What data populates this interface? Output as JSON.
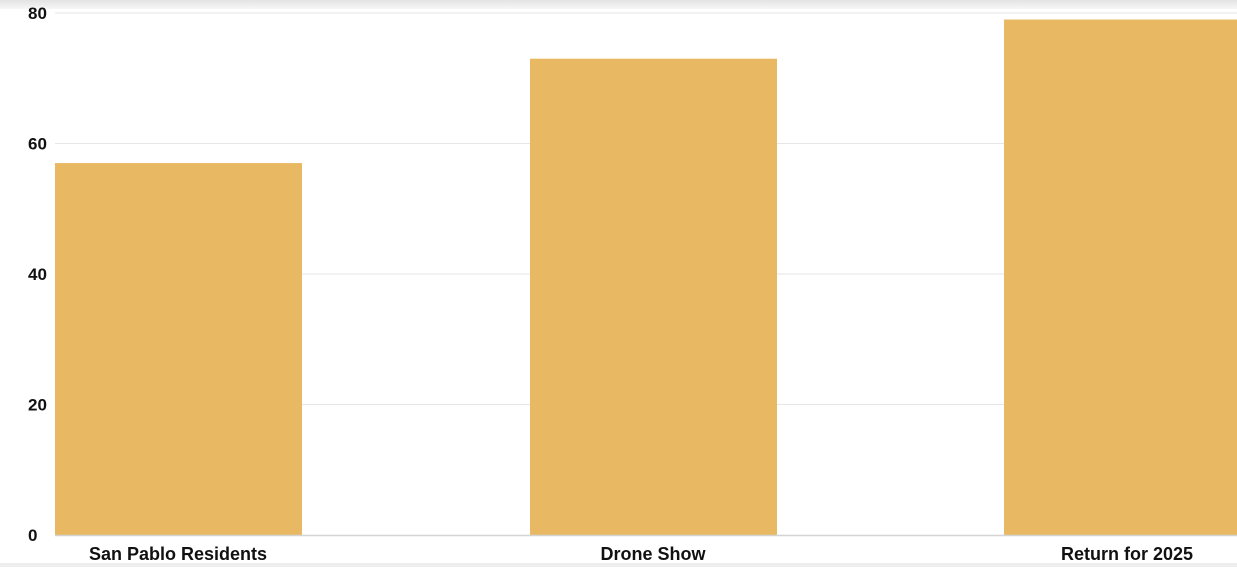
{
  "chart_data": {
    "type": "bar",
    "title": "",
    "xlabel": "",
    "ylabel": "",
    "categories": [
      "San Pablo Residents",
      "Drone Show",
      "Return for 2025"
    ],
    "values": [
      57,
      73,
      79
    ],
    "ylim": [
      0,
      80
    ],
    "yticks": [
      0,
      20,
      40,
      60,
      80
    ],
    "grid": true,
    "legend": "none",
    "bar_color": "#e8b862",
    "grid_color": "#e6e6e6",
    "axis_color": "#d4d4d4",
    "label_color": "#111111"
  }
}
